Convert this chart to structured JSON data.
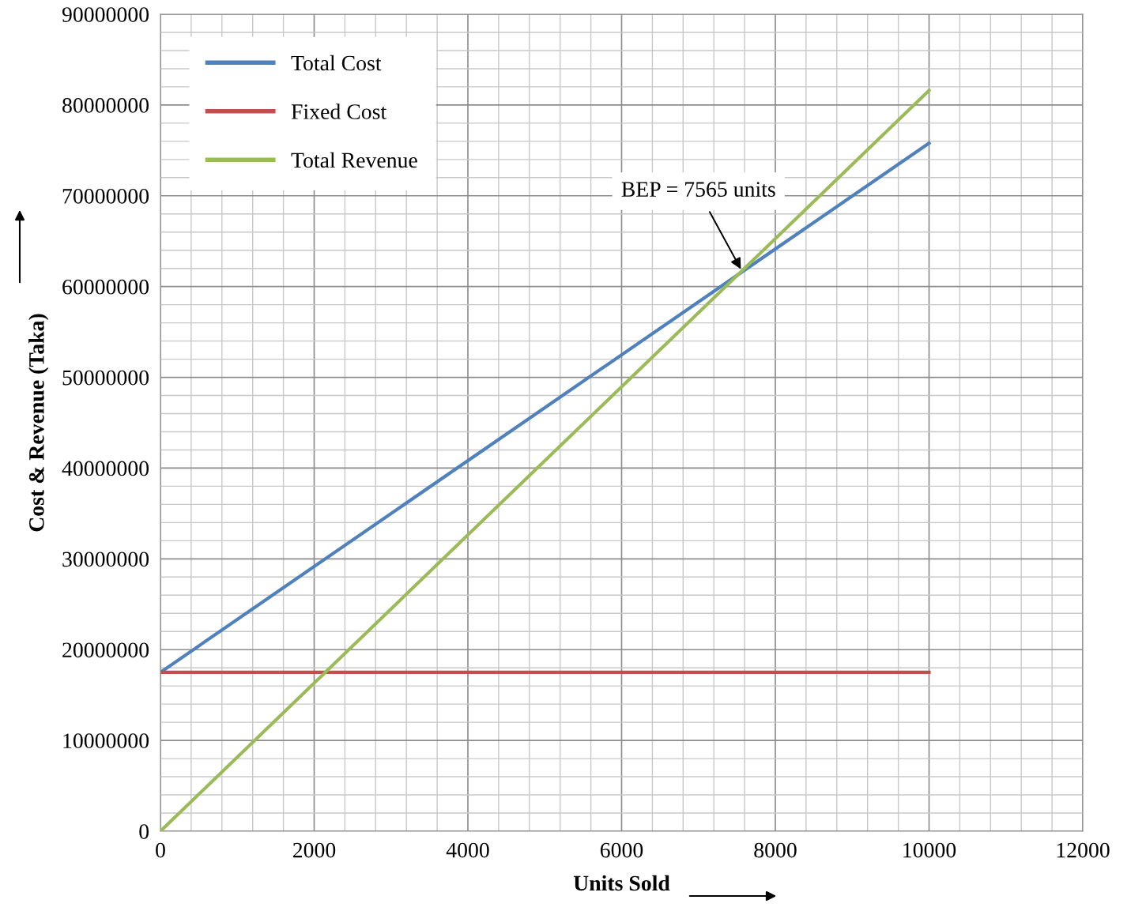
{
  "chart_data": {
    "type": "line",
    "xlabel": "Units Sold",
    "ylabel": "Cost & Revenue (Taka)",
    "x": [
      0,
      10000
    ],
    "series": [
      {
        "name": "Total Cost",
        "color": "#4f81bd",
        "values": [
          17500000,
          75800000
        ]
      },
      {
        "name": "Fixed Cost",
        "color": "#c0504d",
        "values": [
          17500000,
          17500000
        ]
      },
      {
        "name": "Total Revenue",
        "color": "#9bbb59",
        "values": [
          0,
          81600000
        ]
      }
    ],
    "xlim": [
      0,
      12000
    ],
    "xticks": [
      0,
      2000,
      4000,
      6000,
      8000,
      10000,
      12000
    ],
    "ylim": [
      0,
      90000000
    ],
    "yticks": [
      0,
      10000000,
      20000000,
      30000000,
      40000000,
      50000000,
      60000000,
      70000000,
      80000000,
      90000000
    ],
    "annotations": [
      {
        "text": "BEP = 7565 units",
        "x": 7565,
        "y": 61700000
      }
    ],
    "grid": true,
    "legend": "top left",
    "marker": "none",
    "line_style": "solid"
  }
}
